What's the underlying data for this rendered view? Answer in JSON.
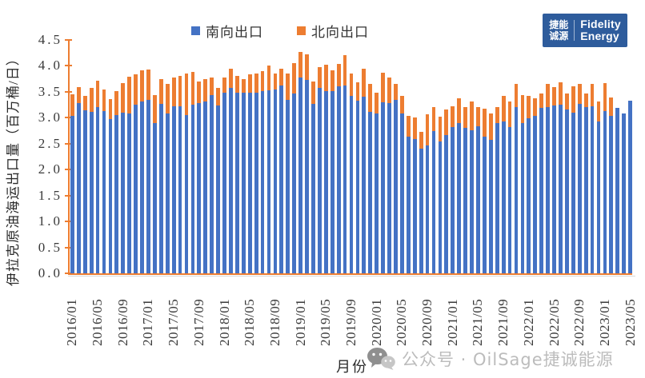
{
  "legend": {
    "south_label": "南向出口",
    "north_label": "北向出口"
  },
  "logo": {
    "cn_line1": "捷能",
    "cn_line2": "诚源",
    "en_line1": "Fidelity",
    "en_line2": "Energy"
  },
  "watermark": {
    "text": "公众号 · OilSage捷诚能源"
  },
  "axis": {
    "y_title": "伊拉克原油海运出口量（百万桶/日）",
    "x_title": "月份"
  },
  "colors": {
    "south": "#4472C4",
    "north": "#ED7D31",
    "axis": "#ED7D31"
  },
  "chart_data": {
    "type": "bar",
    "stacked": true,
    "title": "",
    "xlabel": "月份",
    "ylabel": "伊拉克原油海运出口量（百万桶/日）",
    "ylim": [
      0,
      4.5
    ],
    "ytick_step": 0.5,
    "grid": false,
    "legend_position": "top-center",
    "categories": [
      "2016/01",
      "2016/02",
      "2016/03",
      "2016/04",
      "2016/05",
      "2016/06",
      "2016/07",
      "2016/08",
      "2016/09",
      "2016/10",
      "2016/11",
      "2016/12",
      "2017/01",
      "2017/02",
      "2017/03",
      "2017/04",
      "2017/05",
      "2017/06",
      "2017/07",
      "2017/08",
      "2017/09",
      "2017/10",
      "2017/11",
      "2017/12",
      "2018/01",
      "2018/02",
      "2018/03",
      "2018/04",
      "2018/05",
      "2018/06",
      "2018/07",
      "2018/08",
      "2018/09",
      "2018/10",
      "2018/11",
      "2018/12",
      "2019/01",
      "2019/02",
      "2019/03",
      "2019/04",
      "2019/05",
      "2019/06",
      "2019/07",
      "2019/08",
      "2019/09",
      "2019/10",
      "2019/11",
      "2019/12",
      "2020/01",
      "2020/02",
      "2020/03",
      "2020/04",
      "2020/05",
      "2020/06",
      "2020/07",
      "2020/08",
      "2020/09",
      "2020/10",
      "2020/11",
      "2020/12",
      "2021/01",
      "2021/02",
      "2021/03",
      "2021/04",
      "2021/05",
      "2021/06",
      "2021/07",
      "2021/08",
      "2021/09",
      "2021/10",
      "2021/11",
      "2021/12",
      "2022/01",
      "2022/02",
      "2022/03",
      "2022/04",
      "2022/05",
      "2022/06",
      "2022/07",
      "2022/08",
      "2022/09",
      "2022/10",
      "2022/11",
      "2022/12",
      "2023/01",
      "2023/02",
      "2023/03",
      "2023/04",
      "2023/05"
    ],
    "x_tick_labels": [
      "2016/01",
      "2016/05",
      "2016/09",
      "2017/01",
      "2017/05",
      "2017/09",
      "2018/01",
      "2018/05",
      "2018/09",
      "2019/01",
      "2019/05",
      "2019/09",
      "2020/01",
      "2020/05",
      "2020/09",
      "2021/01",
      "2021/05",
      "2021/09",
      "2022/01",
      "2022/05",
      "2022/09",
      "2023/01",
      "2023/05"
    ],
    "series": [
      {
        "name": "南向出口",
        "color": "#4472C4",
        "values": [
          3.03,
          3.28,
          3.14,
          3.12,
          3.21,
          3.13,
          2.98,
          3.05,
          3.1,
          3.08,
          3.25,
          3.31,
          3.35,
          2.9,
          3.26,
          3.08,
          3.22,
          3.22,
          3.05,
          3.25,
          3.29,
          3.31,
          3.43,
          3.23,
          3.48,
          3.57,
          3.48,
          3.49,
          3.48,
          3.49,
          3.52,
          3.53,
          3.55,
          3.62,
          3.34,
          3.47,
          3.78,
          3.73,
          3.26,
          3.57,
          3.52,
          3.52,
          3.61,
          3.62,
          3.42,
          3.33,
          3.4,
          3.11,
          3.09,
          3.3,
          3.28,
          3.35,
          3.08,
          2.63,
          2.59,
          2.41,
          2.47,
          2.75,
          2.54,
          2.67,
          2.82,
          2.89,
          2.8,
          2.76,
          2.84,
          2.64,
          2.57,
          2.9,
          2.93,
          2.82,
          3.2,
          2.9,
          2.99,
          3.03,
          3.19,
          3.2,
          3.23,
          3.25,
          3.16,
          3.1,
          3.26,
          3.2,
          3.22,
          2.93,
          3.13,
          3.04,
          3.19,
          3.09,
          3.33
        ]
      },
      {
        "name": "北向出口",
        "color": "#ED7D31",
        "values": [
          0.42,
          0.31,
          0.28,
          0.46,
          0.5,
          0.42,
          0.38,
          0.47,
          0.57,
          0.71,
          0.59,
          0.6,
          0.58,
          0.53,
          0.48,
          0.57,
          0.55,
          0.58,
          0.8,
          0.64,
          0.41,
          0.43,
          0.35,
          0.35,
          0.3,
          0.38,
          0.33,
          0.26,
          0.36,
          0.37,
          0.38,
          0.48,
          0.31,
          0.33,
          0.51,
          0.59,
          0.49,
          0.5,
          0.44,
          0.41,
          0.5,
          0.4,
          0.43,
          0.59,
          0.44,
          0.36,
          0.55,
          0.55,
          0.4,
          0.57,
          0.5,
          0.3,
          0.34,
          0.41,
          0.41,
          0.32,
          0.6,
          0.45,
          0.48,
          0.49,
          0.4,
          0.49,
          0.41,
          0.56,
          0.36,
          0.53,
          0.51,
          0.3,
          0.49,
          0.5,
          0.45,
          0.53,
          0.43,
          0.35,
          0.28,
          0.46,
          0.36,
          0.44,
          0.31,
          0.5,
          0.39,
          0.27,
          0.44,
          0.38,
          0.54,
          0.35,
          0,
          0,
          0
        ]
      }
    ]
  }
}
